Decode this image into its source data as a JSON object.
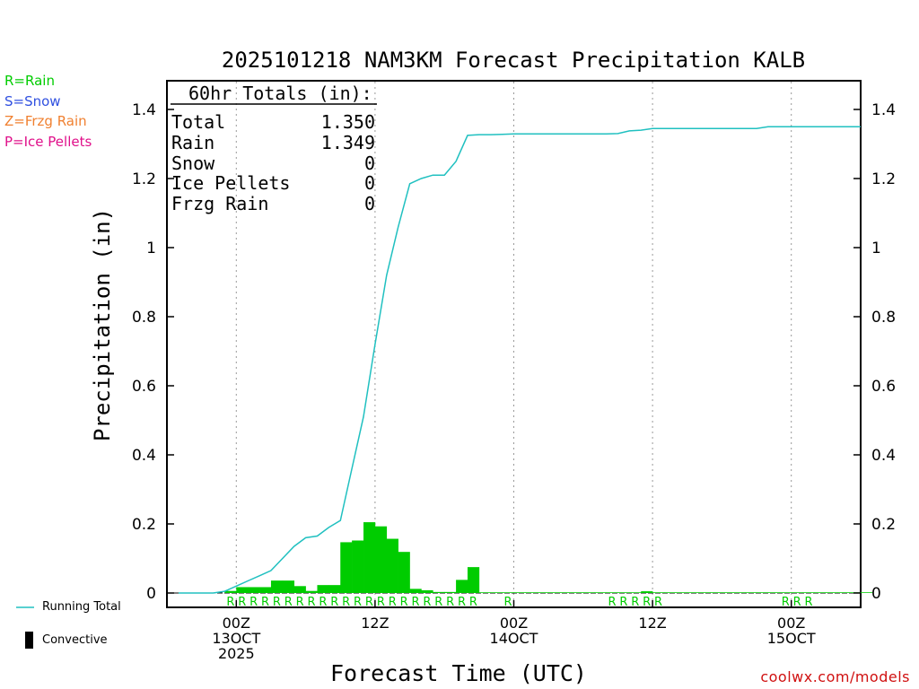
{
  "precip_legend": [
    {
      "label": "R=Rain",
      "color": "#00cc00"
    },
    {
      "label": "S=Snow",
      "color": "#3050e0"
    },
    {
      "label": "Z=Frzg Rain",
      "color": "#f08030"
    },
    {
      "label": "P=Ice Pellets",
      "color": "#e0108a"
    }
  ],
  "key": {
    "running_total_label": "Running Total",
    "convective_label": "Convective"
  },
  "credit": "coolwx.com/models",
  "totals_box": {
    "heading": "60hr Totals (in):",
    "rows": [
      {
        "name": "Total",
        "value": "1.350"
      },
      {
        "name": "Rain",
        "value": "1.349"
      },
      {
        "name": "Snow",
        "value": "0"
      },
      {
        "name": "Ice Pellets",
        "value": "0"
      },
      {
        "name": "Frzg Rain",
        "value": "0"
      }
    ]
  },
  "colors": {
    "running_total": "#20c0c0",
    "rain_bar": "#00cc00",
    "rain_marker": "#00cc00"
  },
  "chart_data": {
    "type": "bar",
    "title": "2025101218 NAM3KM Forecast Precipitation KALB",
    "xlabel": "Forecast Time (UTC)",
    "ylabel": "Precipitation (in)",
    "x_unit": "forecast hour",
    "xlim": [
      18,
      78
    ],
    "ylim": [
      0,
      1.5
    ],
    "yticks": [
      0,
      0.2,
      0.4,
      0.6,
      0.8,
      1,
      1.2,
      1.4
    ],
    "ytick_labels": [
      "0",
      "0.2",
      "0.4",
      "0.6",
      "0.8",
      "1",
      "1.2",
      "1.4"
    ],
    "xticks": [
      {
        "x": 24,
        "lines": [
          "00Z",
          "13OCT",
          "2025"
        ]
      },
      {
        "x": 36,
        "lines": [
          "12Z"
        ]
      },
      {
        "x": 48,
        "lines": [
          "00Z",
          "14OCT"
        ]
      },
      {
        "x": 60,
        "lines": [
          "12Z"
        ]
      },
      {
        "x": 72,
        "lines": [
          "00Z",
          "15OCT"
        ]
      }
    ],
    "grid": "vertical dotted at major ticks",
    "series": [
      {
        "name": "Running Total",
        "type": "line",
        "x": [
          19,
          20,
          21,
          22,
          23,
          24,
          25,
          26,
          27,
          28,
          29,
          30,
          31,
          32,
          33,
          34,
          35,
          36,
          37,
          38,
          39,
          40,
          41,
          42,
          43,
          44,
          45,
          46,
          47,
          48,
          49,
          50,
          51,
          52,
          53,
          54,
          55,
          56,
          57,
          58,
          59,
          60,
          61,
          62,
          63,
          64,
          65,
          66,
          67,
          68,
          69,
          70,
          71,
          72,
          73,
          74,
          75,
          76,
          77,
          78
        ],
        "values": [
          0,
          0,
          0,
          0,
          0.005,
          0.02,
          0.035,
          0.05,
          0.065,
          0.1,
          0.135,
          0.16,
          0.165,
          0.19,
          0.21,
          0.36,
          0.51,
          0.72,
          0.92,
          1.06,
          1.185,
          1.2,
          1.21,
          1.21,
          1.25,
          1.325,
          1.327,
          1.327,
          1.328,
          1.329,
          1.329,
          1.329,
          1.329,
          1.329,
          1.329,
          1.329,
          1.329,
          1.329,
          1.33,
          1.338,
          1.34,
          1.345,
          1.345,
          1.345,
          1.345,
          1.345,
          1.345,
          1.345,
          1.345,
          1.345,
          1.345,
          1.35,
          1.35,
          1.35,
          1.35,
          1.35,
          1.35,
          1.35,
          1.35,
          1.35
        ]
      },
      {
        "name": "Rain",
        "type": "bar",
        "x": [
          23,
          24,
          25,
          26,
          27,
          28,
          29,
          30,
          31,
          32,
          33,
          34,
          35,
          36,
          37,
          38,
          39,
          40,
          41,
          42,
          43,
          44,
          45,
          46,
          47,
          48,
          49,
          50,
          51,
          52,
          53,
          54,
          55,
          56,
          57,
          58,
          59,
          60,
          61,
          62,
          63,
          64,
          65,
          66,
          67,
          68,
          69,
          70,
          71,
          72,
          73,
          74,
          75,
          76,
          77,
          78
        ],
        "values": [
          0.006,
          0.017,
          0.017,
          0.017,
          0.036,
          0.036,
          0.02,
          0.006,
          0.023,
          0.023,
          0.147,
          0.152,
          0.205,
          0.193,
          0.157,
          0.119,
          0.012,
          0.008,
          0.003,
          0.003,
          0.038,
          0.075,
          0.002,
          0.002,
          0.002,
          0.002,
          0.002,
          0.002,
          0.002,
          0.002,
          0.002,
          0.002,
          0.002,
          0.002,
          0.002,
          0.002,
          0.005,
          0.002,
          0.002,
          0.002,
          0.002,
          0.002,
          0.002,
          0.002,
          0.002,
          0.002,
          0.002,
          0.002,
          0.002,
          0.002,
          0.002,
          0.002,
          0.002,
          0.002,
          0.002,
          0.002
        ]
      }
    ],
    "rain_markers": {
      "symbol": "R",
      "x": [
        23.5,
        24.5,
        25.5,
        26.5,
        27.5,
        28.5,
        29.5,
        30.5,
        31.5,
        32.5,
        33.5,
        34.5,
        35.5,
        36.5,
        37.5,
        38.5,
        39.5,
        40.5,
        41.5,
        42.5,
        43.5,
        44.5,
        47.5,
        56.5,
        57.5,
        58.5,
        59.5,
        60.5,
        71.5,
        72.5,
        73.5
      ]
    }
  }
}
